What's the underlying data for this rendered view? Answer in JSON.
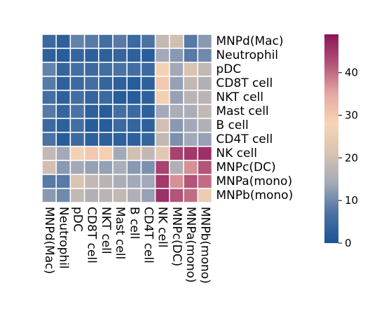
{
  "chart_data": {
    "type": "heatmap",
    "title": "",
    "xlabel": "",
    "ylabel": "",
    "rows": [
      "MNPd(Mac)",
      "Neutrophil",
      "pDC",
      "CD8T cell",
      "NKT cell",
      "Mast cell",
      "B cell",
      "CD4T cell",
      "NK cell",
      "MNPc(DC)",
      "MNPa(mono)",
      "MNPb(mono)"
    ],
    "columns": [
      "MNPd(Mac)",
      "Neutrophil",
      "pDC",
      "CD8T cell",
      "NKT cell",
      "Mast cell",
      "B cell",
      "CD4T cell",
      "NK cell",
      "MNPc(DC)",
      "MNPa(mono)",
      "MNPb(mono)"
    ],
    "values": [
      [
        5,
        3,
        9,
        8,
        6,
        8,
        5,
        7,
        18,
        20,
        8,
        12
      ],
      [
        3,
        2,
        4,
        3,
        3,
        4,
        3,
        2,
        14,
        12,
        8,
        10
      ],
      [
        9,
        4,
        6,
        5,
        6,
        7,
        6,
        5,
        27,
        14,
        21,
        18
      ],
      [
        8,
        3,
        5,
        6,
        4,
        3,
        2,
        3,
        30,
        13,
        18,
        16
      ],
      [
        6,
        3,
        6,
        4,
        5,
        2,
        2,
        3,
        29,
        13,
        17,
        17
      ],
      [
        8,
        4,
        7,
        3,
        2,
        6,
        5,
        3,
        14,
        15,
        15,
        18
      ],
      [
        5,
        3,
        6,
        2,
        2,
        5,
        4,
        3,
        20,
        12,
        14,
        16
      ],
      [
        7,
        2,
        5,
        3,
        3,
        3,
        3,
        4,
        18,
        11,
        14,
        13
      ],
      [
        18,
        14,
        27,
        30,
        29,
        14,
        20,
        18,
        23,
        44,
        45,
        46
      ],
      [
        20,
        12,
        14,
        13,
        13,
        15,
        12,
        11,
        44,
        16,
        37,
        42
      ],
      [
        8,
        8,
        21,
        18,
        17,
        15,
        14,
        14,
        45,
        37,
        42,
        40
      ],
      [
        12,
        10,
        18,
        16,
        17,
        18,
        16,
        13,
        46,
        42,
        40,
        25
      ]
    ],
    "colorbar": {
      "min": 0,
      "max": 49,
      "ticks": [
        0,
        10,
        20,
        30,
        40
      ],
      "tick_labels": [
        "0",
        "10",
        "20",
        "30",
        "40"
      ],
      "colormap": [
        "#195496",
        "#4a72a3",
        "#a3a9b8",
        "#d9c3b1",
        "#f7d5b4",
        "#e4a9a2",
        "#b35479",
        "#8c1557"
      ]
    },
    "grid": false,
    "cell_border_color": "#ffffff"
  }
}
